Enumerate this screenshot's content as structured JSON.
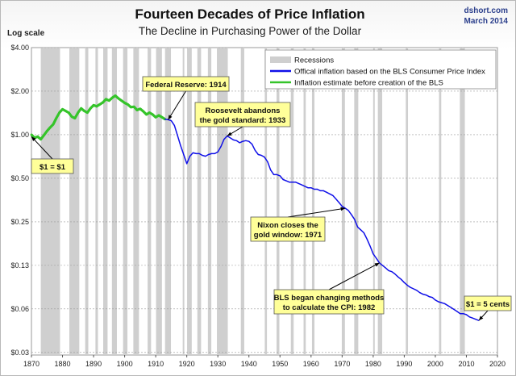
{
  "header": {
    "title": "Fourteen Decades of Price Inflation",
    "subtitle": "The Decline in Purchasing Power of the Dollar",
    "source": "dshort.com",
    "date": "March 2014",
    "scale_label": "Log scale"
  },
  "colors": {
    "bls_line": "#1010e8",
    "estimate_line": "#35c42a",
    "recession_band": "#cfcfcf",
    "callout_fill": "#ffff99"
  },
  "chart_data": {
    "type": "line",
    "yscale": "log",
    "xlim": [
      1870,
      2020
    ],
    "ylim": [
      0.03,
      4.0
    ],
    "x_ticks": [
      "1870",
      "1880",
      "1890",
      "1900",
      "1910",
      "1920",
      "1930",
      "1940",
      "1950",
      "1960",
      "1970",
      "1980",
      "1990",
      "2000",
      "2010",
      "2020"
    ],
    "y_ticks": [
      {
        "value": 4.0,
        "label": "$4.00"
      },
      {
        "value": 2.0,
        "label": "$2.00"
      },
      {
        "value": 1.0,
        "label": "$1.00"
      },
      {
        "value": 0.5,
        "label": "$0.50"
      },
      {
        "value": 0.25,
        "label": "$0.25"
      },
      {
        "value": 0.125,
        "label": "$0.13"
      },
      {
        "value": 0.0625,
        "label": "$0.06"
      },
      {
        "value": 0.03125,
        "label": "$0.03"
      }
    ],
    "legend": {
      "placement": "top-right",
      "items": [
        {
          "key": "recessions",
          "label": "Recessions"
        },
        {
          "key": "bls",
          "label": "Offical inflation based on the BLS Consumer Price Index"
        },
        {
          "key": "estimate",
          "label": "Inflation estimate before creation of the BLS"
        }
      ]
    },
    "recessions": [
      [
        1873.0,
        1879.2
      ],
      [
        1882.2,
        1885.4
      ],
      [
        1887.3,
        1888.3
      ],
      [
        1890.6,
        1891.4
      ],
      [
        1893.1,
        1894.5
      ],
      [
        1895.9,
        1897.5
      ],
      [
        1899.5,
        1900.9
      ],
      [
        1902.8,
        1904.6
      ],
      [
        1907.4,
        1908.5
      ],
      [
        1910.1,
        1912.0
      ],
      [
        1913.0,
        1914.9
      ],
      [
        1918.7,
        1919.2
      ],
      [
        1920.1,
        1921.6
      ],
      [
        1923.4,
        1924.6
      ],
      [
        1926.8,
        1927.9
      ],
      [
        1929.7,
        1933.2
      ],
      [
        1937.4,
        1938.5
      ],
      [
        1945.1,
        1945.8
      ],
      [
        1948.9,
        1949.8
      ],
      [
        1953.5,
        1954.4
      ],
      [
        1957.6,
        1958.3
      ],
      [
        1960.3,
        1961.1
      ],
      [
        1969.9,
        1970.9
      ],
      [
        1973.9,
        1975.2
      ],
      [
        1980.0,
        1980.5
      ],
      [
        1981.5,
        1982.9
      ],
      [
        1990.5,
        1991.2
      ],
      [
        2001.2,
        2001.9
      ],
      [
        2007.9,
        2009.5
      ]
    ],
    "series": [
      {
        "key": "estimate",
        "name": "Inflation estimate before creation of the BLS",
        "x": [
          1870,
          1871,
          1872,
          1873,
          1874,
          1875,
          1876,
          1877,
          1878,
          1879,
          1880,
          1881,
          1882,
          1883,
          1884,
          1885,
          1886,
          1887,
          1888,
          1889,
          1890,
          1891,
          1892,
          1893,
          1894,
          1895,
          1896,
          1897,
          1898,
          1899,
          1900,
          1901,
          1902,
          1903,
          1904,
          1905,
          1906,
          1907,
          1908,
          1909,
          1910,
          1911,
          1912,
          1913
        ],
        "y": [
          1.0,
          0.95,
          0.97,
          0.93,
          0.99,
          1.06,
          1.12,
          1.18,
          1.3,
          1.42,
          1.5,
          1.46,
          1.42,
          1.33,
          1.3,
          1.42,
          1.52,
          1.46,
          1.42,
          1.52,
          1.6,
          1.57,
          1.62,
          1.67,
          1.76,
          1.72,
          1.8,
          1.86,
          1.78,
          1.72,
          1.66,
          1.62,
          1.55,
          1.56,
          1.48,
          1.51,
          1.45,
          1.38,
          1.42,
          1.38,
          1.32,
          1.36,
          1.32,
          1.28
        ]
      },
      {
        "key": "bls",
        "name": "Offical inflation based on the BLS Consumer Price Index",
        "x": [
          1913,
          1914,
          1915,
          1916,
          1917,
          1918,
          1919,
          1920,
          1921,
          1922,
          1923,
          1924,
          1925,
          1926,
          1927,
          1928,
          1929,
          1930,
          1931,
          1932,
          1933,
          1934,
          1935,
          1936,
          1937,
          1938,
          1939,
          1940,
          1941,
          1942,
          1943,
          1944,
          1945,
          1946,
          1947,
          1948,
          1949,
          1950,
          1951,
          1952,
          1953,
          1954,
          1955,
          1956,
          1957,
          1958,
          1959,
          1960,
          1961,
          1962,
          1963,
          1964,
          1965,
          1966,
          1967,
          1968,
          1969,
          1970,
          1971,
          1972,
          1973,
          1974,
          1975,
          1976,
          1977,
          1978,
          1979,
          1980,
          1981,
          1982,
          1983,
          1984,
          1985,
          1986,
          1987,
          1988,
          1989,
          1990,
          1991,
          1992,
          1993,
          1994,
          1995,
          1996,
          1997,
          1998,
          1999,
          2000,
          2001,
          2002,
          2003,
          2004,
          2005,
          2006,
          2007,
          2008,
          2009,
          2010,
          2011,
          2012,
          2013,
          2014
        ],
        "y": [
          1.28,
          1.27,
          1.25,
          1.16,
          0.99,
          0.84,
          0.73,
          0.63,
          0.71,
          0.75,
          0.74,
          0.74,
          0.72,
          0.71,
          0.73,
          0.74,
          0.74,
          0.76,
          0.83,
          0.93,
          0.98,
          0.95,
          0.92,
          0.91,
          0.88,
          0.9,
          0.91,
          0.9,
          0.86,
          0.78,
          0.73,
          0.72,
          0.7,
          0.65,
          0.57,
          0.53,
          0.53,
          0.52,
          0.49,
          0.48,
          0.47,
          0.47,
          0.47,
          0.46,
          0.45,
          0.44,
          0.43,
          0.43,
          0.42,
          0.42,
          0.41,
          0.41,
          0.4,
          0.39,
          0.38,
          0.36,
          0.34,
          0.32,
          0.31,
          0.3,
          0.28,
          0.26,
          0.23,
          0.22,
          0.21,
          0.19,
          0.17,
          0.15,
          0.14,
          0.13,
          0.125,
          0.12,
          0.115,
          0.113,
          0.109,
          0.104,
          0.1,
          0.095,
          0.091,
          0.088,
          0.086,
          0.084,
          0.081,
          0.079,
          0.078,
          0.076,
          0.075,
          0.072,
          0.07,
          0.069,
          0.068,
          0.066,
          0.064,
          0.062,
          0.06,
          0.058,
          0.058,
          0.057,
          0.055,
          0.054,
          0.053,
          0.052
        ]
      }
    ],
    "annotations": [
      {
        "key": "dollar",
        "lines": [
          "$1 = $1"
        ],
        "anchor_year": 1870,
        "anchor_value": 0.97
      },
      {
        "key": "fed",
        "lines": [
          "Federal Reserve: 1914"
        ],
        "anchor_year": 1914,
        "anchor_value": 1.27
      },
      {
        "key": "roosevelt",
        "lines": [
          "Roosevelt abandons",
          "the gold standard: 1933"
        ],
        "anchor_year": 1933,
        "anchor_value": 0.98
      },
      {
        "key": "nixon",
        "lines": [
          "Nixon closes the",
          "gold window: 1971"
        ],
        "anchor_year": 1971,
        "anchor_value": 0.31
      },
      {
        "key": "bls",
        "lines": [
          "BLS began  changing methods",
          "to calculate the CPI: 1982"
        ],
        "anchor_year": 1982,
        "anchor_value": 0.13
      },
      {
        "key": "cents",
        "lines": [
          "$1 = 5 cents"
        ],
        "anchor_year": 2014,
        "anchor_value": 0.052
      }
    ]
  }
}
